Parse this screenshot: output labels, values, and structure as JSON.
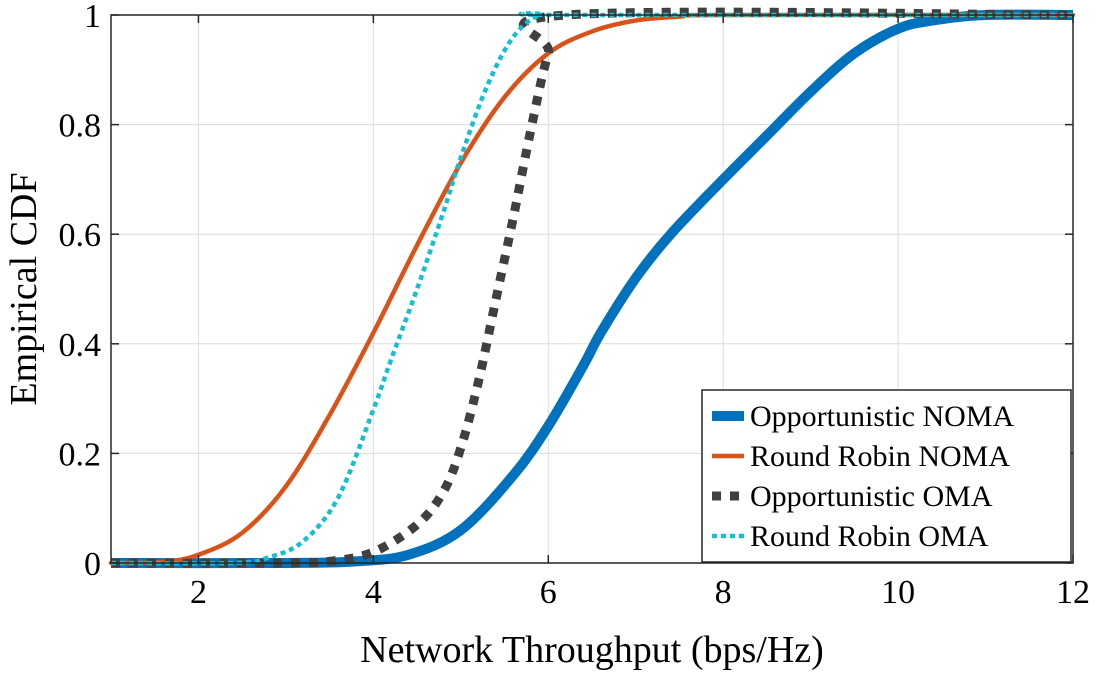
{
  "chart_data": {
    "type": "line",
    "title": "",
    "xlabel": "Network Throughput (bps/Hz)",
    "ylabel": "Empirical CDF",
    "xlim": [
      1,
      12
    ],
    "ylim": [
      0,
      1
    ],
    "xticks": [
      2,
      4,
      6,
      8,
      10,
      12
    ],
    "yticks": [
      0,
      0.2,
      0.4,
      0.6,
      0.8,
      1
    ],
    "grid": true,
    "legend_position": "bottom-right",
    "series": [
      {
        "name": "Opportunistic NOMA",
        "color": "#0072BD",
        "style": "solid-thick",
        "x": [
          1,
          3,
          3.8,
          4.4,
          5.0,
          5.6,
          6.0,
          6.4,
          6.6,
          7.0,
          7.4,
          8.0,
          8.5,
          9.0,
          9.5,
          10.0,
          10.4,
          11.0,
          12
        ],
        "y": [
          0,
          0,
          0.003,
          0.015,
          0.06,
          0.16,
          0.25,
          0.36,
          0.42,
          0.52,
          0.6,
          0.7,
          0.78,
          0.86,
          0.93,
          0.975,
          0.99,
          1.0,
          1.0
        ]
      },
      {
        "name": "Round Robin NOMA",
        "color": "#D95319",
        "style": "solid",
        "x": [
          1,
          1.6,
          2.0,
          2.5,
          3.0,
          3.5,
          4.0,
          4.5,
          5.0,
          5.5,
          6.0,
          6.5,
          7.0,
          7.5,
          8.0,
          12
        ],
        "y": [
          0,
          0.002,
          0.015,
          0.055,
          0.14,
          0.27,
          0.42,
          0.58,
          0.73,
          0.85,
          0.93,
          0.97,
          0.99,
          0.997,
          1.0,
          1.0
        ]
      },
      {
        "name": "Opportunistic OMA",
        "color": "#404040",
        "style": "dotted-thick",
        "x": [
          1,
          3.0,
          3.5,
          4.0,
          4.5,
          4.8,
          5.0,
          5.2,
          5.4,
          5.6,
          5.8,
          6.0,
          6.2,
          12
        ],
        "y": [
          0,
          0,
          0.003,
          0.02,
          0.07,
          0.13,
          0.21,
          0.33,
          0.48,
          0.63,
          0.79,
          0.93,
          1.0,
          1.0
        ]
      },
      {
        "name": "Round Robin OMA",
        "color": "#17BECF",
        "style": "dotted",
        "x": [
          1,
          2.4,
          2.8,
          3.2,
          3.6,
          4.0,
          4.2,
          4.5,
          4.8,
          5.0,
          5.3,
          5.6,
          5.9,
          6.2,
          12
        ],
        "y": [
          0,
          0,
          0.01,
          0.04,
          0.12,
          0.28,
          0.37,
          0.5,
          0.64,
          0.74,
          0.87,
          0.96,
          1.0,
          1.0,
          1.0
        ]
      }
    ]
  }
}
